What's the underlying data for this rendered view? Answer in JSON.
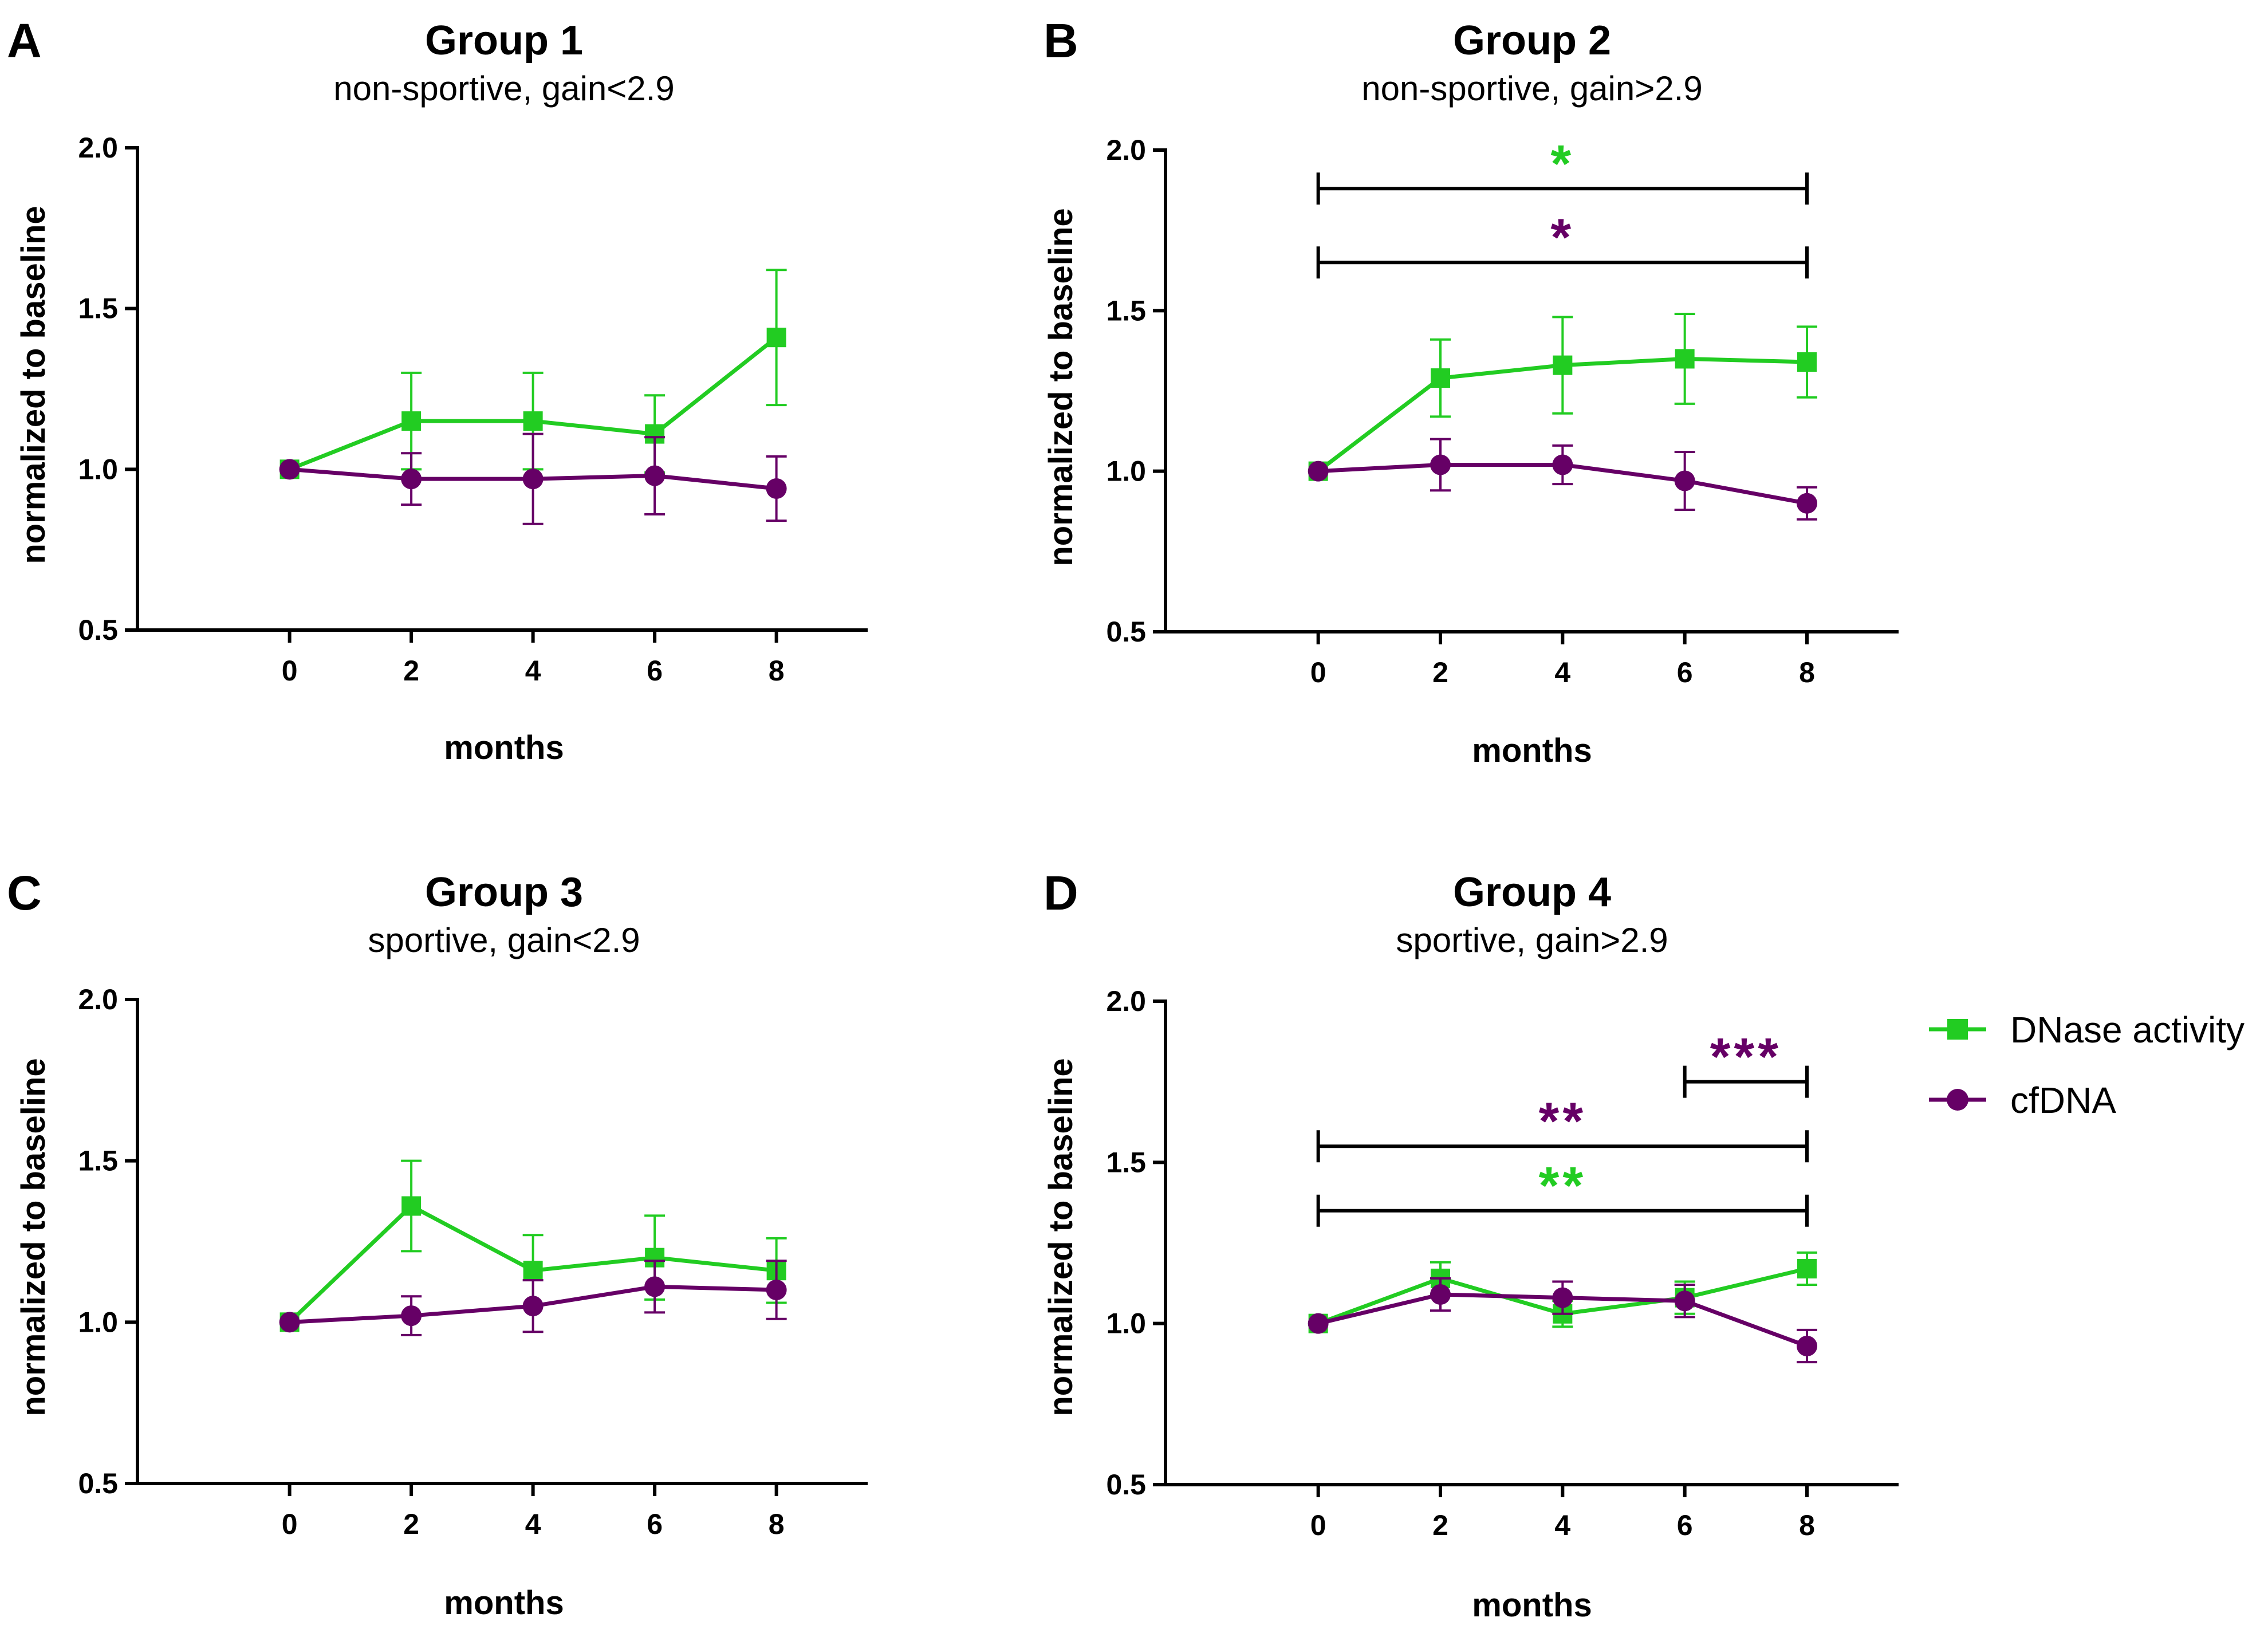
{
  "colors": {
    "dnase": "#22cc22",
    "cfdna": "#660066",
    "axis": "#000000"
  },
  "legend": [
    {
      "key": "dnase",
      "label": "DNase activity",
      "marker": "square"
    },
    {
      "key": "cfdna",
      "label": "cfDNA",
      "marker": "circle"
    }
  ],
  "chart_data": [
    {
      "type": "line",
      "letter": "A",
      "title": "Group 1",
      "subtitle": "non-sportive, gain<2.9",
      "xlabel": "months",
      "ylabel": "normalized to baseline",
      "x": [
        0,
        2,
        4,
        6,
        8
      ],
      "xlim": [
        -2.5,
        9.5
      ],
      "ylim": [
        0.5,
        2.0
      ],
      "yticks": [
        "0.5",
        "1.0",
        "1.5",
        "2.0"
      ],
      "series": [
        {
          "name": "DNase activity",
          "key": "dnase",
          "values": [
            1.0,
            1.15,
            1.15,
            1.11,
            1.41
          ],
          "errors": [
            0.0,
            0.15,
            0.15,
            0.12,
            0.21
          ]
        },
        {
          "name": "cfDNA",
          "key": "cfdna",
          "values": [
            1.0,
            0.97,
            0.97,
            0.98,
            0.94
          ],
          "errors": [
            0.0,
            0.08,
            0.14,
            0.12,
            0.1
          ]
        }
      ],
      "significance": []
    },
    {
      "type": "line",
      "letter": "B",
      "title": "Group 2",
      "subtitle": "non-sportive, gain>2.9",
      "xlabel": "months",
      "ylabel": "normalized to baseline",
      "x": [
        0,
        2,
        4,
        6,
        8
      ],
      "xlim": [
        -2.5,
        9.5
      ],
      "ylim": [
        0.5,
        2.0
      ],
      "yticks": [
        "0.5",
        "1.0",
        "1.5",
        "2.0"
      ],
      "series": [
        {
          "name": "DNase activity",
          "key": "dnase",
          "values": [
            1.0,
            1.29,
            1.33,
            1.35,
            1.34
          ],
          "errors": [
            0.0,
            0.12,
            0.15,
            0.14,
            0.11
          ]
        },
        {
          "name": "cfDNA",
          "key": "cfdna",
          "values": [
            1.0,
            1.02,
            1.02,
            0.97,
            0.9
          ],
          "errors": [
            0.0,
            0.08,
            0.06,
            0.09,
            0.05
          ]
        }
      ],
      "significance": [
        {
          "from": 0,
          "to": 8,
          "y": 1.88,
          "label": "*",
          "key": "dnase"
        },
        {
          "from": 0,
          "to": 8,
          "y": 1.65,
          "label": "*",
          "key": "cfdna"
        }
      ]
    },
    {
      "type": "line",
      "letter": "C",
      "title": "Group 3",
      "subtitle": "sportive, gain<2.9",
      "xlabel": "months",
      "ylabel": "normalized to baseline",
      "x": [
        0,
        2,
        4,
        6,
        8
      ],
      "xlim": [
        -2.5,
        9.5
      ],
      "ylim": [
        0.5,
        2.0
      ],
      "yticks": [
        "0.5",
        "1.0",
        "1.5",
        "2.0"
      ],
      "series": [
        {
          "name": "DNase activity",
          "key": "dnase",
          "values": [
            1.0,
            1.36,
            1.16,
            1.2,
            1.16
          ],
          "errors": [
            0.0,
            0.14,
            0.11,
            0.13,
            0.1
          ]
        },
        {
          "name": "cfDNA",
          "key": "cfdna",
          "values": [
            1.0,
            1.02,
            1.05,
            1.11,
            1.1
          ],
          "errors": [
            0.0,
            0.06,
            0.08,
            0.08,
            0.09
          ]
        }
      ],
      "significance": []
    },
    {
      "type": "line",
      "letter": "D",
      "title": "Group 4",
      "subtitle": "sportive, gain>2.9",
      "xlabel": "months",
      "ylabel": "normalized to baseline",
      "x": [
        0,
        2,
        4,
        6,
        8
      ],
      "xlim": [
        -2.5,
        9.5
      ],
      "ylim": [
        0.5,
        2.0
      ],
      "yticks": [
        "0.5",
        "1.0",
        "1.5",
        "2.0"
      ],
      "series": [
        {
          "name": "DNase activity",
          "key": "dnase",
          "values": [
            1.0,
            1.14,
            1.03,
            1.08,
            1.17
          ],
          "errors": [
            0.0,
            0.05,
            0.04,
            0.05,
            0.05
          ]
        },
        {
          "name": "cfDNA",
          "key": "cfdna",
          "values": [
            1.0,
            1.09,
            1.08,
            1.07,
            0.93
          ],
          "errors": [
            0.0,
            0.05,
            0.05,
            0.05,
            0.05
          ]
        }
      ],
      "significance": [
        {
          "from": 6,
          "to": 8,
          "y": 1.75,
          "label": "***",
          "key": "cfdna"
        },
        {
          "from": 0,
          "to": 8,
          "y": 1.55,
          "label": "**",
          "key": "cfdna"
        },
        {
          "from": 0,
          "to": 8,
          "y": 1.35,
          "label": "**",
          "key": "dnase"
        }
      ]
    }
  ]
}
